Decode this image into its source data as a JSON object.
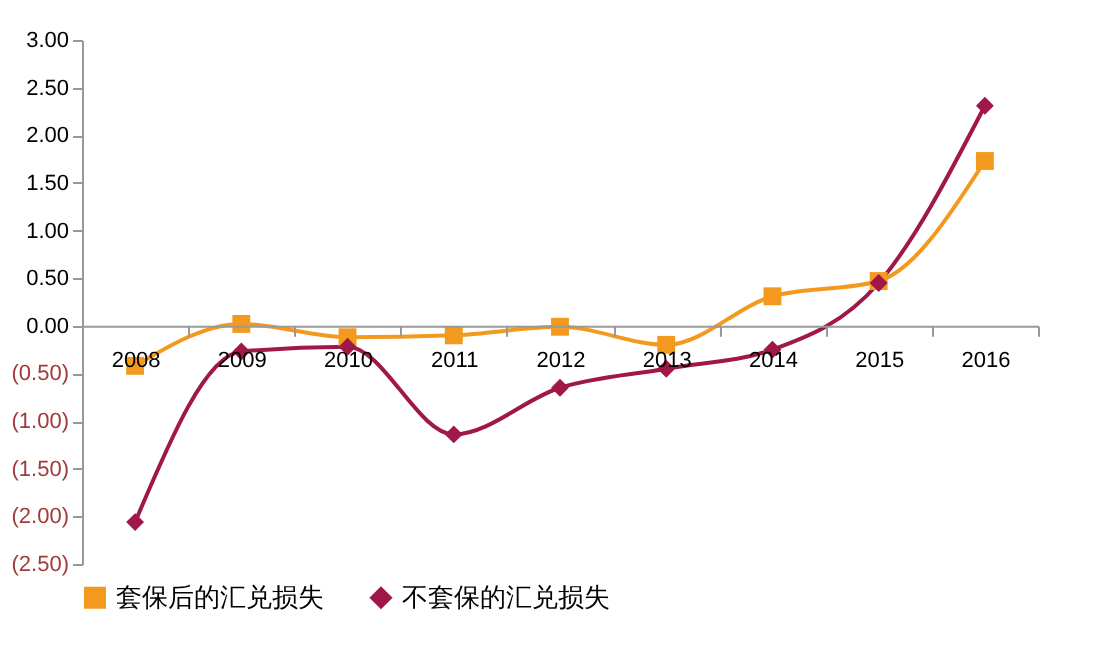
{
  "chart_data": {
    "type": "line",
    "categories": [
      "2008",
      "2009",
      "2010",
      "2011",
      "2012",
      "2013",
      "2014",
      "2015",
      "2016"
    ],
    "series": [
      {
        "name": "套保后的汇兑损失",
        "color": "#f39a1e",
        "marker": "square",
        "values": [
          -0.42,
          0.02,
          -0.12,
          -0.1,
          -0.01,
          -0.2,
          0.31,
          0.47,
          1.73
        ]
      },
      {
        "name": "不套保的汇兑损失",
        "color": "#a0174a",
        "marker": "diamond",
        "values": [
          -2.06,
          -0.27,
          -0.22,
          -1.14,
          -0.65,
          -0.45,
          -0.25,
          0.45,
          2.31
        ]
      }
    ],
    "ylim": [
      -2.5,
      3.0
    ],
    "yticks": [
      {
        "value": -2.5,
        "label": "(2.50)"
      },
      {
        "value": -2.0,
        "label": "(2.00)"
      },
      {
        "value": -1.5,
        "label": "(1.50)"
      },
      {
        "value": -1.0,
        "label": "(1.00)"
      },
      {
        "value": -0.5,
        "label": "(0.50)"
      },
      {
        "value": 0,
        "label": "0.00"
      },
      {
        "value": 0.5,
        "label": "0.50"
      },
      {
        "value": 1.0,
        "label": "1.00"
      },
      {
        "value": 1.5,
        "label": "1.50"
      },
      {
        "value": 2.0,
        "label": "2.00"
      },
      {
        "value": 2.5,
        "label": "2.50"
      },
      {
        "value": 3.0,
        "label": "3.00"
      }
    ],
    "grid": false,
    "legend": "bottom",
    "line_style": "solid"
  }
}
